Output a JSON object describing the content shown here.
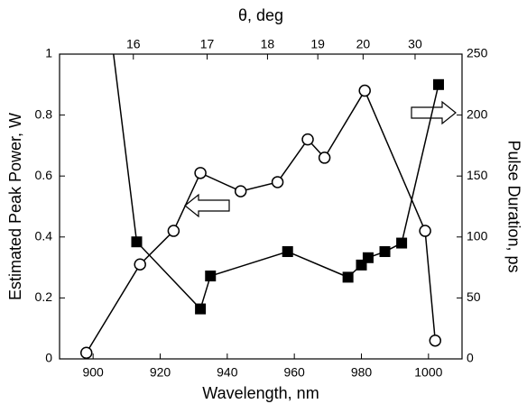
{
  "chart_data": {
    "type": "line",
    "xlabel": "Wavelength, nm",
    "ylabel": "Estimated Peak Power, W",
    "y2label": "Pulse Duration, ps",
    "xlim": [
      890,
      1010
    ],
    "xticks": [
      900,
      920,
      940,
      960,
      980,
      1000
    ],
    "ylim": [
      0,
      1
    ],
    "yticks": [
      0,
      0.2,
      0.4,
      0.6,
      0.8,
      1
    ],
    "y2lim": [
      0,
      250
    ],
    "y2ticks": [
      0,
      50,
      100,
      150,
      200,
      250
    ],
    "top_axis": {
      "label": "θ, deg",
      "ticks": [
        16,
        17,
        18,
        19,
        20,
        30
      ],
      "tick_wavelengths": [
        912,
        934,
        952,
        967,
        980.5,
        996
      ]
    },
    "series": [
      {
        "name": "Estimated Peak Power",
        "marker": "open-circle",
        "color": "#000000",
        "x": [
          898,
          914,
          924,
          932,
          944,
          955,
          964,
          969,
          981,
          999,
          1002
        ],
        "values": [
          0.02,
          0.31,
          0.42,
          0.61,
          0.55,
          0.58,
          0.72,
          0.66,
          0.88,
          0.42,
          0.06
        ]
      },
      {
        "name": "Pulse Duration",
        "marker": "filled-square",
        "color": "#000000",
        "axis": "y2",
        "x": [
          898,
          913,
          932,
          935,
          958,
          976,
          980,
          982,
          987,
          992,
          1003
        ],
        "values": [
          430,
          96,
          41,
          68,
          88,
          67,
          77,
          83,
          88,
          95,
          225
        ]
      }
    ]
  }
}
